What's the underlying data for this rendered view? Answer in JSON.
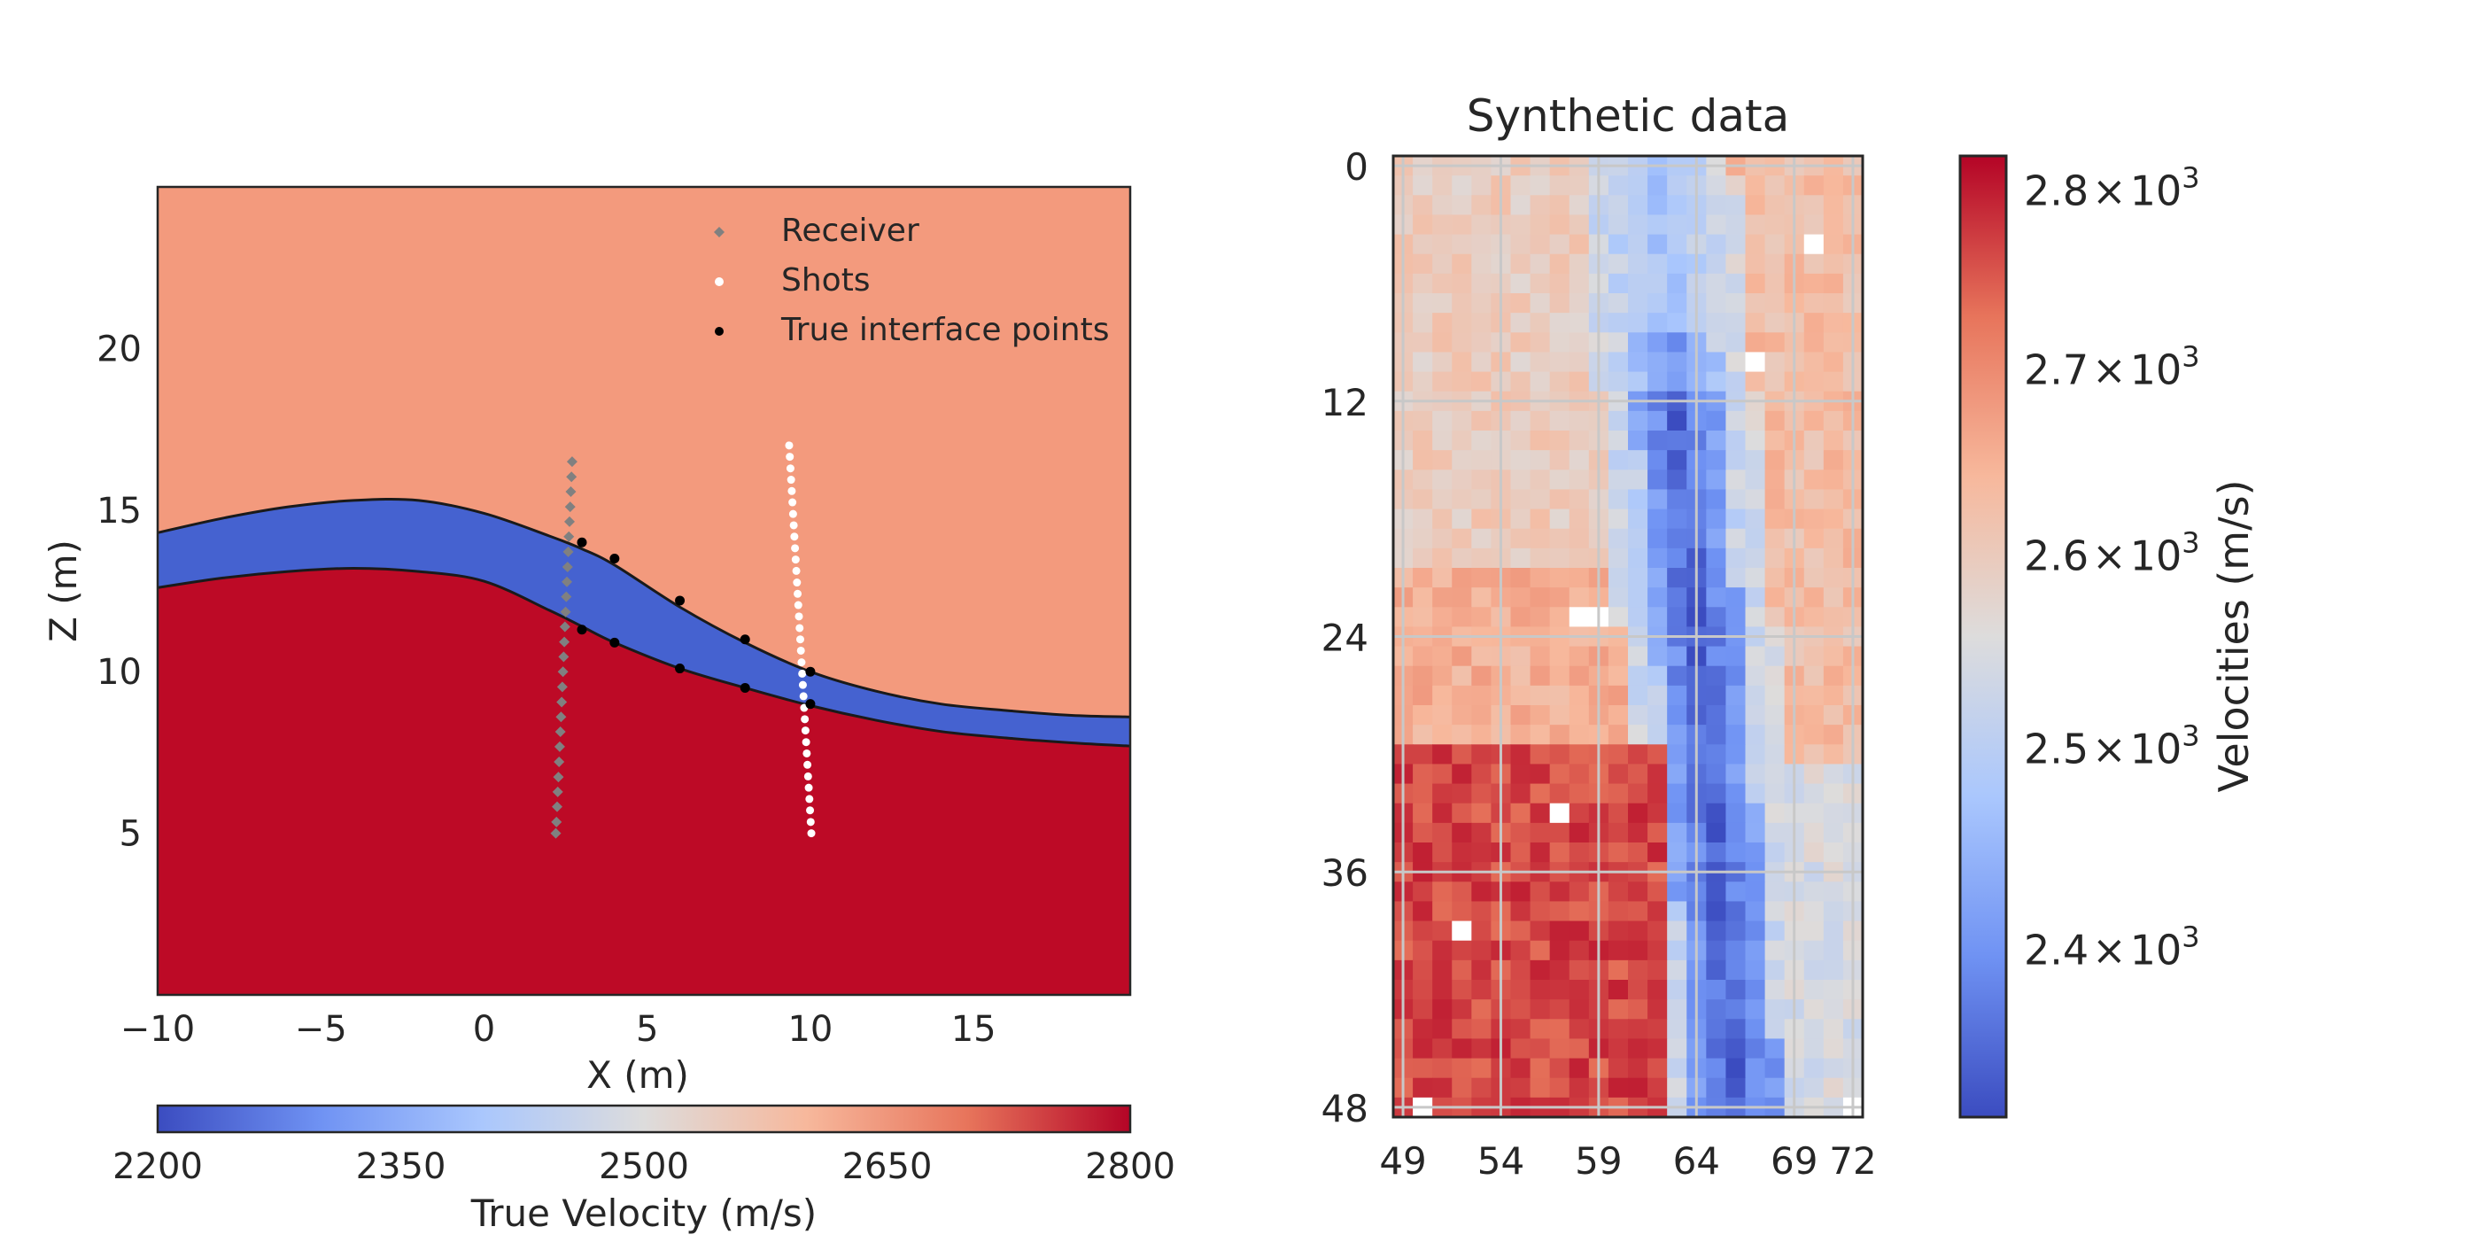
{
  "colors": {
    "upper_layer": "#f39a7d",
    "middle_layer": "#4562d0",
    "lower_layer": "#bd0a26",
    "receiver": "#808080",
    "shot": "#ffffff",
    "interface_point": "#000000",
    "grid": "#c8c8c8",
    "colormap_stops": [
      "#3b4cc0",
      "#6f92f3",
      "#aac7fd",
      "#dddcdc",
      "#f7b89c",
      "#e7745b",
      "#b40426"
    ]
  },
  "chart_data": [
    {
      "type": "scatter",
      "subtype": "velocity-model",
      "xlabel": "X (m)",
      "ylabel": "Z (m)",
      "xlim": [
        -10,
        19.8
      ],
      "ylim": [
        0,
        25
      ],
      "xticks": [
        "−10",
        "−5",
        "0",
        "5",
        "10",
        "15"
      ],
      "xtick_values": [
        -10,
        -5,
        0,
        5,
        10,
        15
      ],
      "yticks": [
        "5",
        "10",
        "15",
        "20"
      ],
      "ytick_values": [
        5,
        10,
        15,
        20
      ],
      "grid": false,
      "legend_position": "top-right",
      "legend": [
        "Receiver",
        "Shots",
        "True interface points"
      ],
      "layers": [
        {
          "velocity": 2600,
          "region": "above top interface"
        },
        {
          "velocity": 2200,
          "region": "between interfaces"
        },
        {
          "velocity": 2800,
          "region": "below bottom interface"
        }
      ],
      "top_interface": {
        "x": [
          -10,
          -8,
          -6,
          -4,
          -2,
          0,
          2,
          3,
          4,
          6,
          8,
          10,
          12,
          14,
          16,
          18,
          19.8
        ],
        "y": [
          14.3,
          14.75,
          15.1,
          15.3,
          15.3,
          14.9,
          14.2,
          13.8,
          13.3,
          12.0,
          10.9,
          10.0,
          9.4,
          9.0,
          8.8,
          8.65,
          8.6
        ]
      },
      "bottom_interface": {
        "x": [
          -10,
          -8,
          -6,
          -4,
          -2,
          0,
          2,
          3,
          4,
          6,
          8,
          10,
          12,
          14,
          16,
          18,
          19.8
        ],
        "y": [
          12.6,
          12.9,
          13.1,
          13.2,
          13.1,
          12.8,
          11.9,
          11.4,
          10.9,
          10.1,
          9.5,
          8.95,
          8.5,
          8.15,
          7.95,
          7.8,
          7.7
        ]
      },
      "receivers": {
        "x": [
          2.7,
          2.68,
          2.66,
          2.64,
          2.62,
          2.6,
          2.58,
          2.56,
          2.54,
          2.52,
          2.5,
          2.48,
          2.46,
          2.44,
          2.42,
          2.4,
          2.38,
          2.36,
          2.34,
          2.32,
          2.3,
          2.28,
          2.26,
          2.24,
          2.22,
          2.2
        ],
        "y": [
          16.5,
          16.03,
          15.57,
          15.1,
          14.64,
          14.18,
          13.71,
          13.24,
          12.78,
          12.32,
          11.85,
          11.39,
          10.92,
          10.46,
          10.0,
          9.53,
          9.06,
          8.6,
          8.14,
          7.68,
          7.21,
          6.74,
          6.28,
          5.82,
          5.35,
          5.0
        ]
      },
      "shots": {
        "x": [
          9.35,
          9.37,
          9.39,
          9.41,
          9.43,
          9.45,
          9.47,
          9.49,
          9.51,
          9.53,
          9.55,
          9.57,
          9.59,
          9.61,
          9.63,
          9.65,
          9.67,
          9.69,
          9.71,
          9.73,
          9.75,
          9.77,
          9.79,
          9.81,
          9.83,
          9.85,
          9.87,
          9.89,
          9.91,
          9.93,
          9.95,
          9.97,
          9.99,
          10.01,
          10.03
        ],
        "y": [
          17.0,
          16.65,
          16.29,
          15.94,
          15.59,
          15.24,
          14.88,
          14.53,
          14.18,
          13.82,
          13.47,
          13.12,
          12.76,
          12.41,
          12.06,
          11.71,
          11.35,
          11.0,
          10.65,
          10.29,
          9.94,
          9.59,
          9.24,
          8.88,
          8.53,
          8.18,
          7.82,
          7.47,
          7.12,
          6.76,
          6.41,
          6.06,
          5.71,
          5.35,
          5.0
        ]
      },
      "interface_points": {
        "x": [
          3,
          4,
          6,
          8,
          10,
          3,
          4,
          6,
          8,
          10
        ],
        "y": [
          14.0,
          13.5,
          12.2,
          11.0,
          10.0,
          11.3,
          10.9,
          10.1,
          9.5,
          9.0
        ]
      },
      "colorbar": {
        "label": "True Velocity (m/s)",
        "orientation": "horizontal",
        "range": [
          2200,
          2800
        ],
        "ticks": [
          "2200",
          "2350",
          "2500",
          "2650",
          "2800"
        ],
        "tick_values": [
          2200,
          2350,
          2500,
          2650,
          2800
        ]
      }
    },
    {
      "type": "heatmap",
      "title": "Synthetic data",
      "xticks": [
        "49",
        "54",
        "59",
        "64",
        "69",
        "72"
      ],
      "xtick_values": [
        49,
        54,
        59,
        64,
        69,
        72
      ],
      "yticks": [
        "0",
        "12",
        "24",
        "36",
        "48"
      ],
      "ytick_values": [
        0,
        12,
        24,
        36,
        48
      ],
      "xlim": [
        48.5,
        72.5
      ],
      "ylim_top_to_bottom": [
        -0.5,
        48.5
      ],
      "grid": true,
      "value_range": [
        2320,
        2820
      ],
      "description_of_values": "velocity per cell; low-velocity diagonal band from x≈62 at top to x≈66 at bottom; high-velocity block for x<62.5, y>29",
      "missing_cells": [
        [
          70,
          4
        ],
        [
          67,
          10
        ],
        [
          59,
          23
        ],
        [
          58,
          23
        ],
        [
          57,
          33
        ],
        [
          52,
          39
        ],
        [
          50,
          48
        ],
        [
          72,
          48
        ]
      ],
      "colorbar": {
        "label": "Velocities (m/s)",
        "orientation": "vertical",
        "scale": "log",
        "range": [
          2320,
          2820
        ],
        "ticks": [
          {
            "value": 2400,
            "mantissa": "2.4",
            "times": "×",
            "base": "10",
            "exp": "3"
          },
          {
            "value": 2500,
            "mantissa": "2.5",
            "times": "×",
            "base": "10",
            "exp": "3"
          },
          {
            "value": 2600,
            "mantissa": "2.6",
            "times": "×",
            "base": "10",
            "exp": "3"
          },
          {
            "value": 2700,
            "mantissa": "2.7",
            "times": "×",
            "base": "10",
            "exp": "3"
          },
          {
            "value": 2800,
            "mantissa": "2.8",
            "times": "×",
            "base": "10",
            "exp": "3"
          }
        ]
      }
    }
  ]
}
